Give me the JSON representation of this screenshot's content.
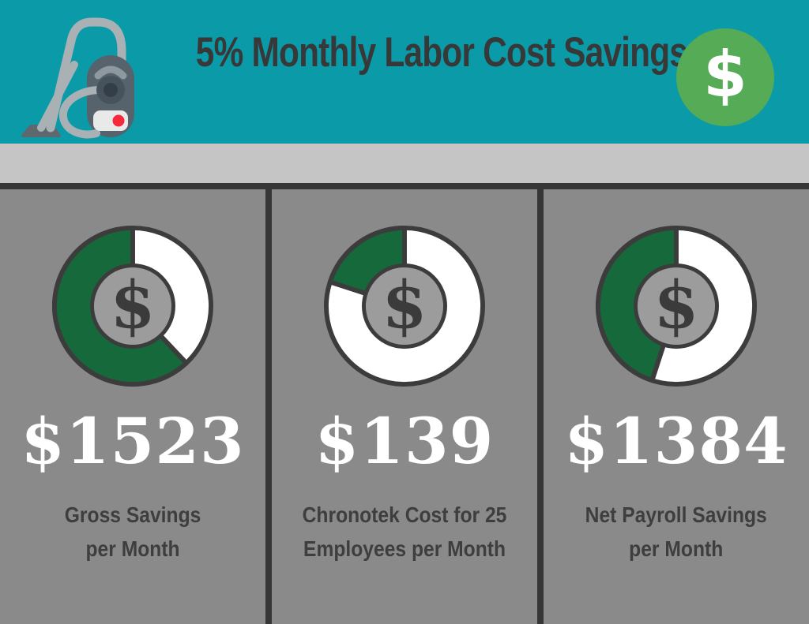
{
  "header": {
    "title": "5% Monthly Labor Cost Savings",
    "coin_symbol": "$"
  },
  "donut": {
    "center_symbol": "$"
  },
  "panels": [
    {
      "amount": "$1523",
      "label_line1": "Gross Savings",
      "label_line2": "per Month"
    },
    {
      "amount": "$139",
      "label_line1": "Chronotek Cost for 25",
      "label_line2": "Employees per Month"
    },
    {
      "amount": "$1384",
      "label_line1": "Net Payroll Savings",
      "label_line2": "per Month"
    }
  ],
  "chart_data": [
    {
      "type": "pie",
      "title": "Gross Savings per Month",
      "value": 1523,
      "value_label": "$1523",
      "center_symbol": "$",
      "slices": [
        {
          "name": "filled",
          "fraction": 0.62,
          "color": "#16693A"
        },
        {
          "name": "remainder",
          "fraction": 0.38,
          "color": "#FFFFFF"
        }
      ]
    },
    {
      "type": "pie",
      "title": "Chronotek Cost for 25 Employees per Month",
      "value": 139,
      "value_label": "$139",
      "center_symbol": "$",
      "slices": [
        {
          "name": "filled",
          "fraction": 0.2,
          "color": "#16693A"
        },
        {
          "name": "remainder",
          "fraction": 0.8,
          "color": "#FFFFFF"
        }
      ]
    },
    {
      "type": "pie",
      "title": "Net Payroll Savings per Month",
      "value": 1384,
      "value_label": "$1384",
      "center_symbol": "$",
      "slices": [
        {
          "name": "filled",
          "fraction": 0.45,
          "color": "#16693A"
        },
        {
          "name": "remainder",
          "fraction": 0.55,
          "color": "#FFFFFF"
        }
      ]
    }
  ],
  "colors": {
    "header_teal": "#0A9AA8",
    "band_gray": "#C5C5C5",
    "frame_dark": "#363636",
    "panel_gray": "#8A8A8A",
    "donut_green": "#16693A",
    "coin_green": "#56AB56",
    "text_dark": "#3B3B3B",
    "amount_white": "#FFFFFF",
    "vacuum_red_dot": "#F8283C"
  }
}
